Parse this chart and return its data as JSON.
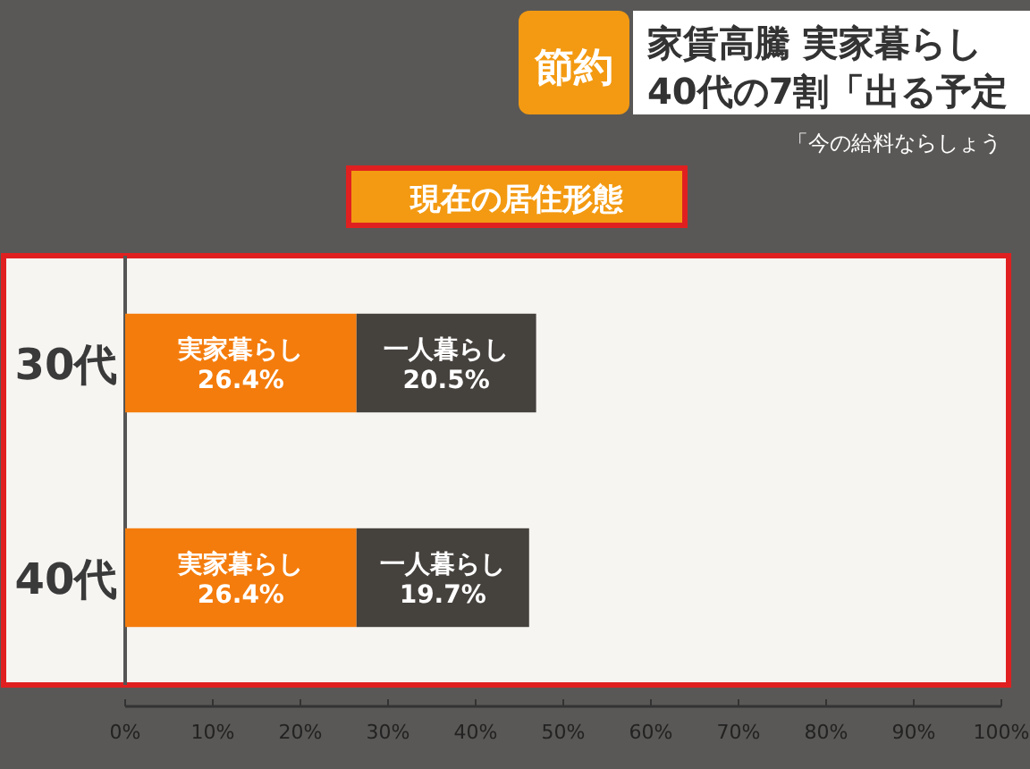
{
  "chart_data": {
    "type": "bar",
    "orientation": "horizontal",
    "stacked": true,
    "title": "現在の居住形態",
    "categories": [
      "30代",
      "40代"
    ],
    "series": [
      {
        "color": "#f47c0c",
        "values": [
          26.4,
          26.4
        ],
        "value_labels": [
          "実家暮らし 26.4%",
          "実家暮らし 26.4%"
        ]
      },
      {
        "color": "#45413d",
        "values": [
          20.5,
          19.7
        ],
        "value_labels": [
          "一人暮らし 20.5%",
          "一人暮らし 19.7%"
        ]
      }
    ],
    "xlim": [
      0,
      100
    ],
    "xticks": [
      {
        "value": 0,
        "label": "0%"
      },
      {
        "value": 10,
        "label": "10%"
      },
      {
        "value": 20,
        "label": "20%"
      },
      {
        "value": 30,
        "label": "30%"
      },
      {
        "value": 40,
        "label": "40%"
      },
      {
        "value": 50,
        "label": "50%"
      },
      {
        "value": 60,
        "label": "60%"
      },
      {
        "value": 70,
        "label": "70%"
      },
      {
        "value": 80,
        "label": "80%"
      },
      {
        "value": 90,
        "label": "90%"
      },
      {
        "value": 100,
        "label": "100%"
      }
    ],
    "annotations": [
      "節約",
      "家賃高騰 実家暮らし",
      "40代の7割「出る予定",
      "「今の給料ならしょう"
    ]
  }
}
